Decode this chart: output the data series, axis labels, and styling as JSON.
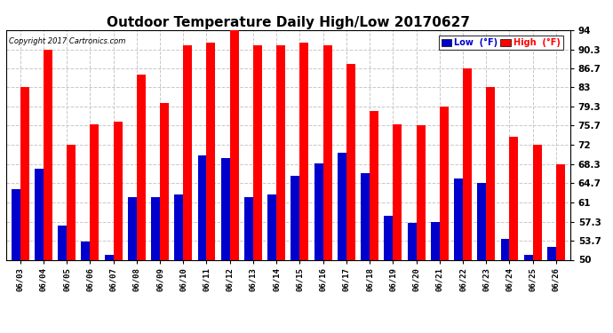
{
  "title": "Outdoor Temperature Daily High/Low 20170627",
  "copyright": "Copyright 2017 Cartronics.com",
  "legend_low": "Low  (°F)",
  "legend_high": "High  (°F)",
  "dates": [
    "06/03",
    "06/04",
    "06/05",
    "06/06",
    "06/07",
    "06/08",
    "06/09",
    "06/10",
    "06/11",
    "06/12",
    "06/13",
    "06/14",
    "06/15",
    "06/16",
    "06/17",
    "06/18",
    "06/19",
    "06/20",
    "06/21",
    "06/22",
    "06/23",
    "06/24",
    "06/25",
    "06/26"
  ],
  "highs": [
    83.0,
    90.3,
    72.0,
    76.0,
    76.5,
    85.5,
    80.0,
    91.0,
    91.5,
    94.0,
    91.0,
    91.0,
    91.5,
    91.0,
    87.5,
    78.5,
    76.0,
    75.7,
    79.3,
    86.7,
    83.0,
    73.5,
    72.0,
    68.3
  ],
  "lows": [
    63.5,
    67.5,
    56.5,
    53.5,
    51.0,
    62.0,
    62.0,
    62.5,
    70.0,
    69.5,
    62.0,
    62.5,
    66.0,
    68.5,
    70.5,
    66.5,
    58.5,
    57.0,
    57.3,
    65.5,
    64.7,
    54.0,
    51.0,
    52.5
  ],
  "ylim_min": 50.0,
  "ylim_max": 94.0,
  "yticks": [
    50.0,
    53.7,
    57.3,
    61.0,
    64.7,
    68.3,
    72.0,
    75.7,
    79.3,
    83.0,
    86.7,
    90.3,
    94.0
  ],
  "high_color": "#ff0000",
  "low_color": "#0000cc",
  "bg_color": "#ffffff",
  "grid_color": "#c8c8c8",
  "title_fontsize": 11,
  "bar_width": 0.38,
  "figwidth": 6.9,
  "figheight": 3.75,
  "dpi": 100
}
